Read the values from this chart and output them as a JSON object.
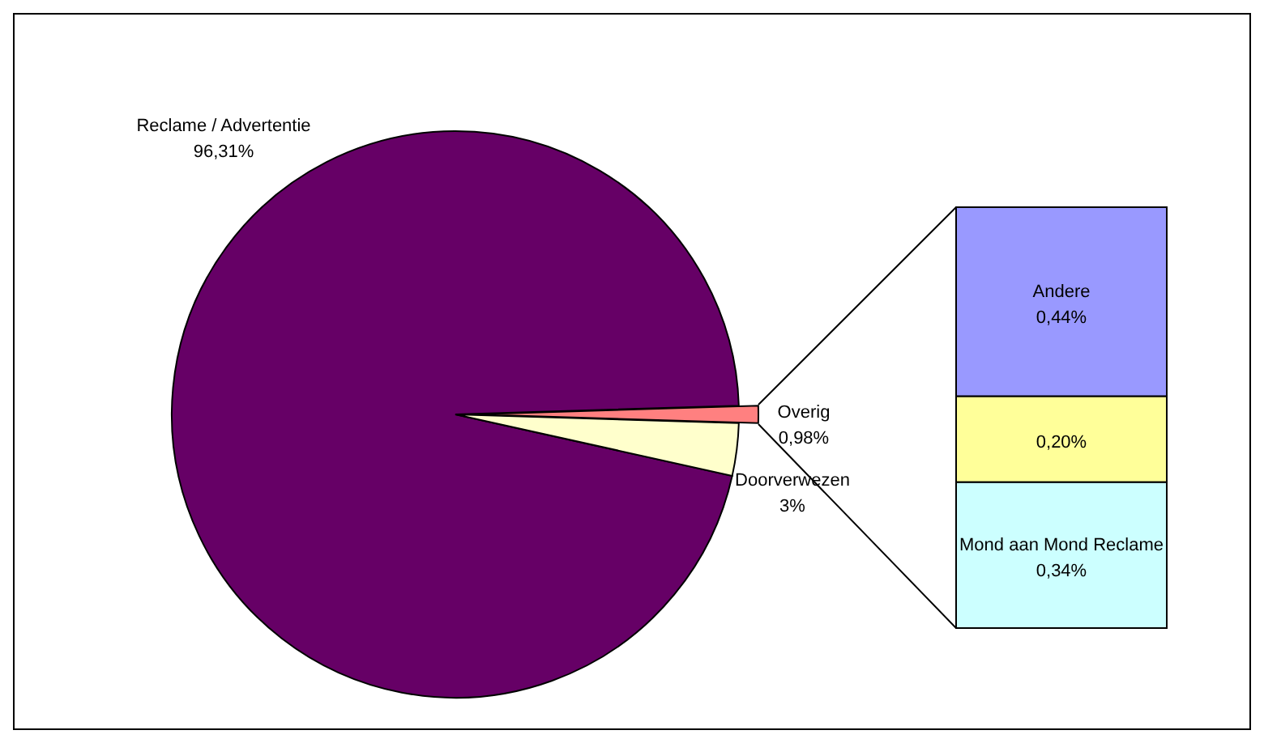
{
  "chart_data": [
    {
      "type": "pie",
      "categories": [
        "Reclame / Advertentie",
        "Doorverwezen",
        "Overig"
      ],
      "values": [
        96.31,
        3,
        0.98
      ],
      "colors": [
        "#660066",
        "#ffffcc",
        "#ff8080"
      ],
      "value_labels": [
        "96,31%",
        "3%",
        "0,98%"
      ]
    },
    {
      "type": "bar",
      "stacked": true,
      "categories": [
        null
      ],
      "series": [
        {
          "name": "Mond aan Mond Reclame",
          "color": "#ccffff",
          "values": [
            0.34
          ],
          "value_labels": [
            "0,34%"
          ]
        },
        {
          "color": "#ffff99",
          "values": [
            0.2
          ],
          "value_labels": [
            "0,20%"
          ]
        },
        {
          "name": "Andere",
          "color": "#9999ff",
          "values": [
            0.44
          ],
          "value_labels": [
            "0,44%"
          ]
        }
      ]
    }
  ]
}
